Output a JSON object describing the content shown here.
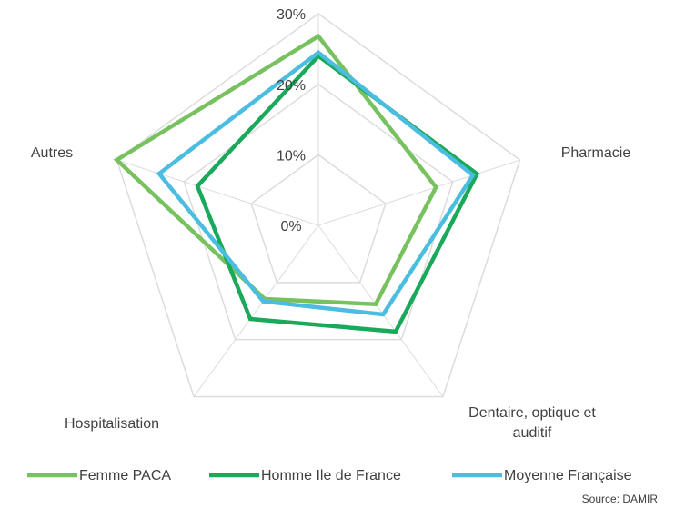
{
  "chart_data": {
    "type": "radar",
    "categories": [
      null,
      "Pharmacie",
      "Dentaire, optique et auditif",
      "Hospitalisation",
      "Autres"
    ],
    "series": [
      {
        "name": "Femme PACA",
        "color": "#77c15e",
        "values": [
          26.8,
          17.5,
          13.8,
          12.9,
          30
        ]
      },
      {
        "name": "Homme Ile de France",
        "color": "#1aa85a",
        "values": [
          24,
          23.6,
          18.6,
          16.4,
          18
        ]
      },
      {
        "name": "Moyenne Française",
        "color": "#4bbde0",
        "values": [
          24.5,
          23,
          15.6,
          13.3,
          23.7
        ]
      }
    ],
    "ylim": [
      0,
      30
    ],
    "yticks": [
      {
        "value": 0,
        "label": "0%"
      },
      {
        "value": 10,
        "label": "10%"
      },
      {
        "value": 20,
        "label": "20%"
      },
      {
        "value": 30,
        "label": "30%"
      }
    ],
    "legend": "bottom",
    "source": "Source: DAMIR"
  }
}
